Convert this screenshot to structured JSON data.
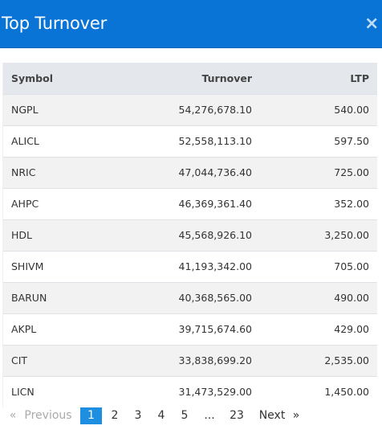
{
  "modal": {
    "title": "Top Turnover",
    "close_glyph": "×"
  },
  "table": {
    "headers": {
      "symbol": "Symbol",
      "turnover": "Turnover",
      "ltp": "LTP"
    },
    "rows": [
      {
        "symbol": "NGPL",
        "turnover": "54,276,678.10",
        "ltp": "540.00"
      },
      {
        "symbol": "ALICL",
        "turnover": "52,558,113.10",
        "ltp": "597.50"
      },
      {
        "symbol": "NRIC",
        "turnover": "47,044,736.40",
        "ltp": "725.00"
      },
      {
        "symbol": "AHPC",
        "turnover": "46,369,361.40",
        "ltp": "352.00"
      },
      {
        "symbol": "HDL",
        "turnover": "45,568,926.10",
        "ltp": "3,250.00"
      },
      {
        "symbol": "SHIVM",
        "turnover": "41,193,342.00",
        "ltp": "705.00"
      },
      {
        "symbol": "BARUN",
        "turnover": "40,368,565.00",
        "ltp": "490.00"
      },
      {
        "symbol": "AKPL",
        "turnover": "39,715,674.60",
        "ltp": "429.00"
      },
      {
        "symbol": "CIT",
        "turnover": "33,838,699.20",
        "ltp": "2,535.00"
      },
      {
        "symbol": "LICN",
        "turnover": "31,473,529.00",
        "ltp": "1,450.00"
      }
    ]
  },
  "pagination": {
    "prev_arrow": "«",
    "prev_label": "Previous",
    "pages": [
      "1",
      "2",
      "3",
      "4",
      "5"
    ],
    "ellipsis": "...",
    "last_page": "23",
    "next_label": "Next",
    "next_arrow": "»",
    "current_page": "1"
  },
  "colors": {
    "header_bg": "#0a74d6",
    "active_page_bg": "#1e8fe0",
    "table_header_bg": "#e4e7eb",
    "striped_row_bg": "#f2f2f2"
  }
}
